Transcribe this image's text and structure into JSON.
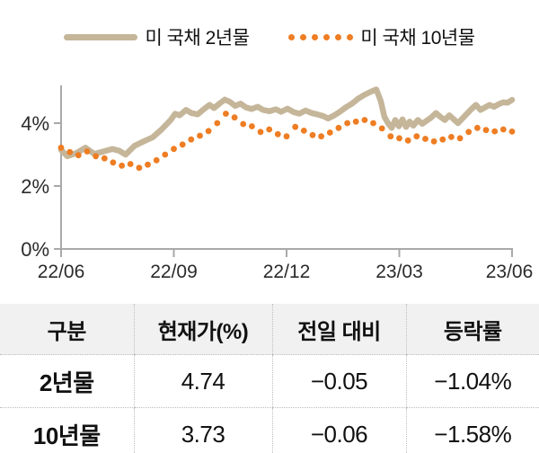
{
  "legend": {
    "items": [
      {
        "label": "미 국채 2년물",
        "style": "line",
        "color": "#c5b69a"
      },
      {
        "label": "미 국채 10년물",
        "style": "dots",
        "color": "#ee7d23"
      }
    ]
  },
  "colors": {
    "series_2y": "#c5b69a",
    "series_10y": "#ee7d23",
    "axis": "#a9a9a9",
    "tick_text": "#2b2b2b",
    "table_header_bg": "#f1f1f1"
  },
  "chart_data": {
    "type": "line",
    "title": "",
    "xlabel": "",
    "ylabel": "",
    "legend_position": "top",
    "grid": false,
    "ylim": [
      0,
      5.4
    ],
    "y_ticks": [
      {
        "v": 0,
        "label": "0%"
      },
      {
        "v": 2,
        "label": "2%"
      },
      {
        "v": 4,
        "label": "4%"
      }
    ],
    "x_ticks": [
      {
        "t": 0.0,
        "label": "22/06"
      },
      {
        "t": 0.25,
        "label": "22/09"
      },
      {
        "t": 0.5,
        "label": "22/12"
      },
      {
        "t": 0.75,
        "label": "23/03"
      },
      {
        "t": 1.0,
        "label": "23/06"
      }
    ],
    "series": [
      {
        "name": "미 국채 2년물",
        "style": "line",
        "color": "#c5b69a",
        "unit": "%",
        "points": [
          [
            0.0,
            3.15
          ],
          [
            0.014,
            2.95
          ],
          [
            0.034,
            3.05
          ],
          [
            0.054,
            3.22
          ],
          [
            0.074,
            3.02
          ],
          [
            0.094,
            3.1
          ],
          [
            0.114,
            3.18
          ],
          [
            0.129,
            3.12
          ],
          [
            0.143,
            3.0
          ],
          [
            0.163,
            3.28
          ],
          [
            0.183,
            3.42
          ],
          [
            0.203,
            3.55
          ],
          [
            0.223,
            3.8
          ],
          [
            0.243,
            4.1
          ],
          [
            0.253,
            4.3
          ],
          [
            0.263,
            4.25
          ],
          [
            0.277,
            4.42
          ],
          [
            0.289,
            4.32
          ],
          [
            0.303,
            4.28
          ],
          [
            0.317,
            4.45
          ],
          [
            0.329,
            4.58
          ],
          [
            0.339,
            4.48
          ],
          [
            0.351,
            4.62
          ],
          [
            0.363,
            4.75
          ],
          [
            0.374,
            4.68
          ],
          [
            0.386,
            4.55
          ],
          [
            0.398,
            4.62
          ],
          [
            0.41,
            4.5
          ],
          [
            0.422,
            4.45
          ],
          [
            0.436,
            4.52
          ],
          [
            0.448,
            4.42
          ],
          [
            0.462,
            4.38
          ],
          [
            0.476,
            4.44
          ],
          [
            0.488,
            4.36
          ],
          [
            0.502,
            4.46
          ],
          [
            0.516,
            4.35
          ],
          [
            0.528,
            4.3
          ],
          [
            0.542,
            4.4
          ],
          [
            0.556,
            4.32
          ],
          [
            0.568,
            4.28
          ],
          [
            0.582,
            4.22
          ],
          [
            0.592,
            4.15
          ],
          [
            0.606,
            4.25
          ],
          [
            0.617,
            4.35
          ],
          [
            0.631,
            4.5
          ],
          [
            0.645,
            4.62
          ],
          [
            0.659,
            4.78
          ],
          [
            0.673,
            4.9
          ],
          [
            0.687,
            5.0
          ],
          [
            0.699,
            5.07
          ],
          [
            0.709,
            4.7
          ],
          [
            0.717,
            4.2
          ],
          [
            0.725,
            4.0
          ],
          [
            0.733,
            3.85
          ],
          [
            0.741,
            4.1
          ],
          [
            0.749,
            3.9
          ],
          [
            0.757,
            4.12
          ],
          [
            0.765,
            3.88
          ],
          [
            0.773,
            4.05
          ],
          [
            0.781,
            3.92
          ],
          [
            0.791,
            4.1
          ],
          [
            0.801,
            3.98
          ],
          [
            0.811,
            4.08
          ],
          [
            0.821,
            4.18
          ],
          [
            0.831,
            4.32
          ],
          [
            0.841,
            4.2
          ],
          [
            0.851,
            4.1
          ],
          [
            0.861,
            4.25
          ],
          [
            0.871,
            4.12
          ],
          [
            0.88,
            4.0
          ],
          [
            0.89,
            4.15
          ],
          [
            0.9,
            4.3
          ],
          [
            0.91,
            4.45
          ],
          [
            0.92,
            4.58
          ],
          [
            0.93,
            4.42
          ],
          [
            0.94,
            4.5
          ],
          [
            0.95,
            4.58
          ],
          [
            0.96,
            4.52
          ],
          [
            0.97,
            4.6
          ],
          [
            0.98,
            4.66
          ],
          [
            0.99,
            4.65
          ],
          [
            1.0,
            4.74
          ]
        ]
      },
      {
        "name": "미 국채 10년물",
        "style": "dots",
        "color": "#ee7d23",
        "unit": "%",
        "interval": "weekly",
        "values": [
          3.22,
          3.08,
          2.98,
          3.1,
          2.95,
          2.88,
          2.75,
          2.65,
          2.7,
          2.58,
          2.68,
          2.82,
          3.0,
          3.18,
          3.32,
          3.48,
          3.6,
          3.75,
          4.0,
          4.3,
          4.18,
          3.97,
          3.9,
          3.72,
          3.8,
          3.65,
          3.58,
          3.88,
          3.76,
          3.62,
          3.58,
          3.7,
          3.85,
          4.0,
          4.05,
          4.1,
          4.0,
          3.83,
          3.58,
          3.52,
          3.45,
          3.58,
          3.5,
          3.42,
          3.48,
          3.56,
          3.52,
          3.72,
          3.85,
          3.78,
          3.74,
          3.8,
          3.73
        ]
      }
    ]
  },
  "table": {
    "headers": [
      "구분",
      "현재가(%)",
      "전일 대비",
      "등락률"
    ],
    "rows": [
      {
        "name": "2년물",
        "price": "4.74",
        "change": "−0.05",
        "pct": "−1.04%"
      },
      {
        "name": "10년물",
        "price": "3.73",
        "change": "−0.06",
        "pct": "−1.58%"
      }
    ]
  }
}
